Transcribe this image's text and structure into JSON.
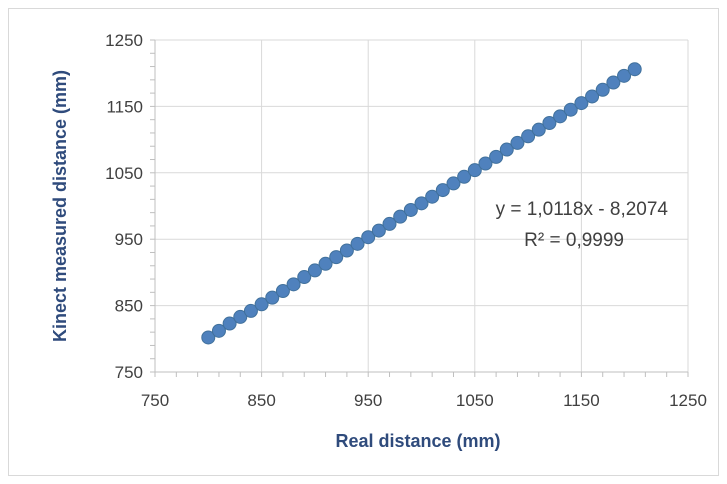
{
  "chart_data": {
    "type": "scatter",
    "xlabel": "Real distance (mm)",
    "ylabel": "Kinect measured distance (mm)",
    "xlim": [
      750,
      1250
    ],
    "ylim": [
      750,
      1250
    ],
    "x_ticks": [
      750,
      850,
      950,
      1050,
      1150,
      1250
    ],
    "y_ticks": [
      750,
      850,
      950,
      1050,
      1150,
      1250
    ],
    "x_tick_labels": [
      "750",
      "850",
      "950",
      "1050",
      "1150",
      "1250"
    ],
    "y_tick_labels": [
      "750",
      "850",
      "950",
      "1050",
      "1150",
      "1250"
    ],
    "grid": true,
    "marker_color": "#4f81bd",
    "series": [
      {
        "x": [
          800,
          810,
          820,
          830,
          840,
          850,
          860,
          870,
          880,
          890,
          900,
          910,
          920,
          930,
          940,
          950,
          960,
          970,
          980,
          990,
          1000,
          1010,
          1020,
          1030,
          1040,
          1050,
          1060,
          1070,
          1080,
          1090,
          1100,
          1110,
          1120,
          1130,
          1140,
          1150,
          1160,
          1170,
          1180,
          1190,
          1200
        ],
        "y": [
          802,
          812,
          823,
          833,
          842,
          852,
          862,
          872,
          882,
          893,
          903,
          913,
          923,
          933,
          943,
          953,
          963,
          973,
          984,
          994,
          1004,
          1014,
          1024,
          1034,
          1044,
          1054,
          1064,
          1074,
          1085,
          1095,
          1105,
          1115,
          1125,
          1135,
          1145,
          1155,
          1165,
          1175,
          1186,
          1196,
          1206
        ]
      }
    ],
    "annotations": {
      "equation": "y = 1,0118x - 8,2074",
      "r_squared": "R² = 0,9999"
    }
  }
}
